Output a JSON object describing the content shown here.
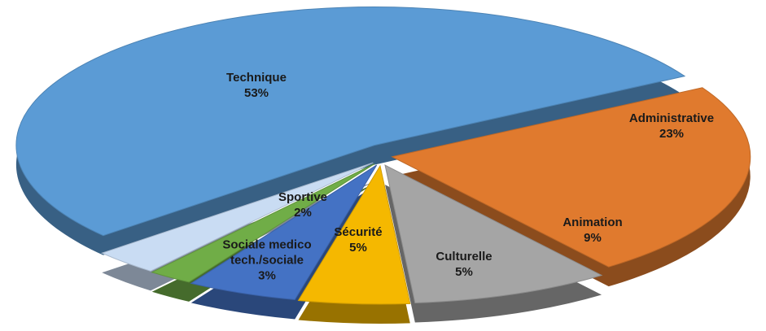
{
  "chart_data": {
    "type": "pie",
    "categories": [
      "Technique",
      "Administrative",
      "Animation",
      "Culturelle",
      "Sécurité",
      "Sportive",
      "Sociale medico tech./sociale"
    ],
    "values": [
      53,
      23,
      9,
      5,
      5,
      2,
      3
    ],
    "value_labels": [
      "53%",
      "23%",
      "9%",
      "5%",
      "5%",
      "2%",
      "3%"
    ],
    "colors": [
      "#5b9bd5",
      "#e07a2e",
      "#a5a5a5",
      "#f5b800",
      "#4472c4",
      "#70ad47",
      "#c9dcf3"
    ]
  }
}
